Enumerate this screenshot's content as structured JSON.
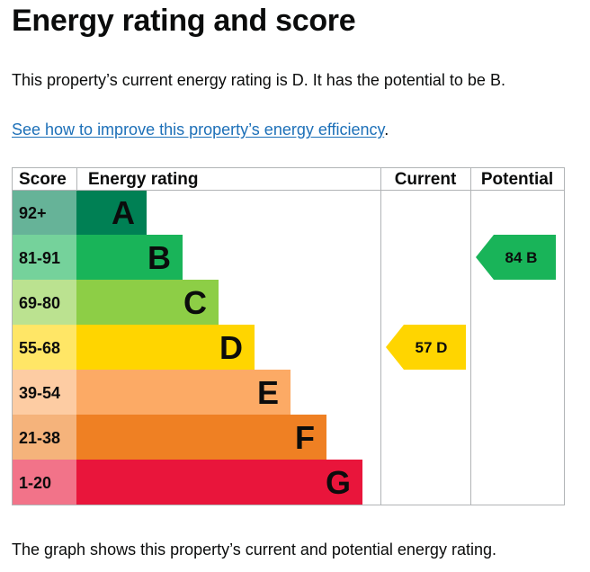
{
  "page": {
    "title": "Energy rating and score",
    "intro": "This property’s current energy rating is D. It has the potential to be B.",
    "improve_link": "See how to improve this property’s energy efficiency",
    "improve_suffix": ".",
    "footer": "The graph shows this property’s current and potential energy rating."
  },
  "chart_data": {
    "type": "bar",
    "title": "",
    "headers": {
      "score": "Score",
      "rating": "Energy rating",
      "current": "Current",
      "potential": "Potential"
    },
    "bands": [
      {
        "letter": "A",
        "range": "92+",
        "color": "#008054",
        "score_bg": "#66b398"
      },
      {
        "letter": "B",
        "range": "81-91",
        "color": "#19b459",
        "score_bg": "#75d29b"
      },
      {
        "letter": "C",
        "range": "69-80",
        "color": "#8dce46",
        "score_bg": "#bbe290"
      },
      {
        "letter": "D",
        "range": "55-68",
        "color": "#ffd500",
        "score_bg": "#ffe666"
      },
      {
        "letter": "E",
        "range": "39-54",
        "color": "#fcaa65",
        "score_bg": "#fdcca3"
      },
      {
        "letter": "F",
        "range": "21-38",
        "color": "#ef8023",
        "score_bg": "#f5b37b"
      },
      {
        "letter": "G",
        "range": "1-20",
        "color": "#e9153b",
        "score_bg": "#f27389"
      }
    ],
    "current": {
      "score": 57,
      "letter": "D",
      "label": "57 D",
      "color": "#ffd500"
    },
    "potential": {
      "score": 84,
      "letter": "B",
      "label": "84 B",
      "color": "#19b459"
    }
  }
}
